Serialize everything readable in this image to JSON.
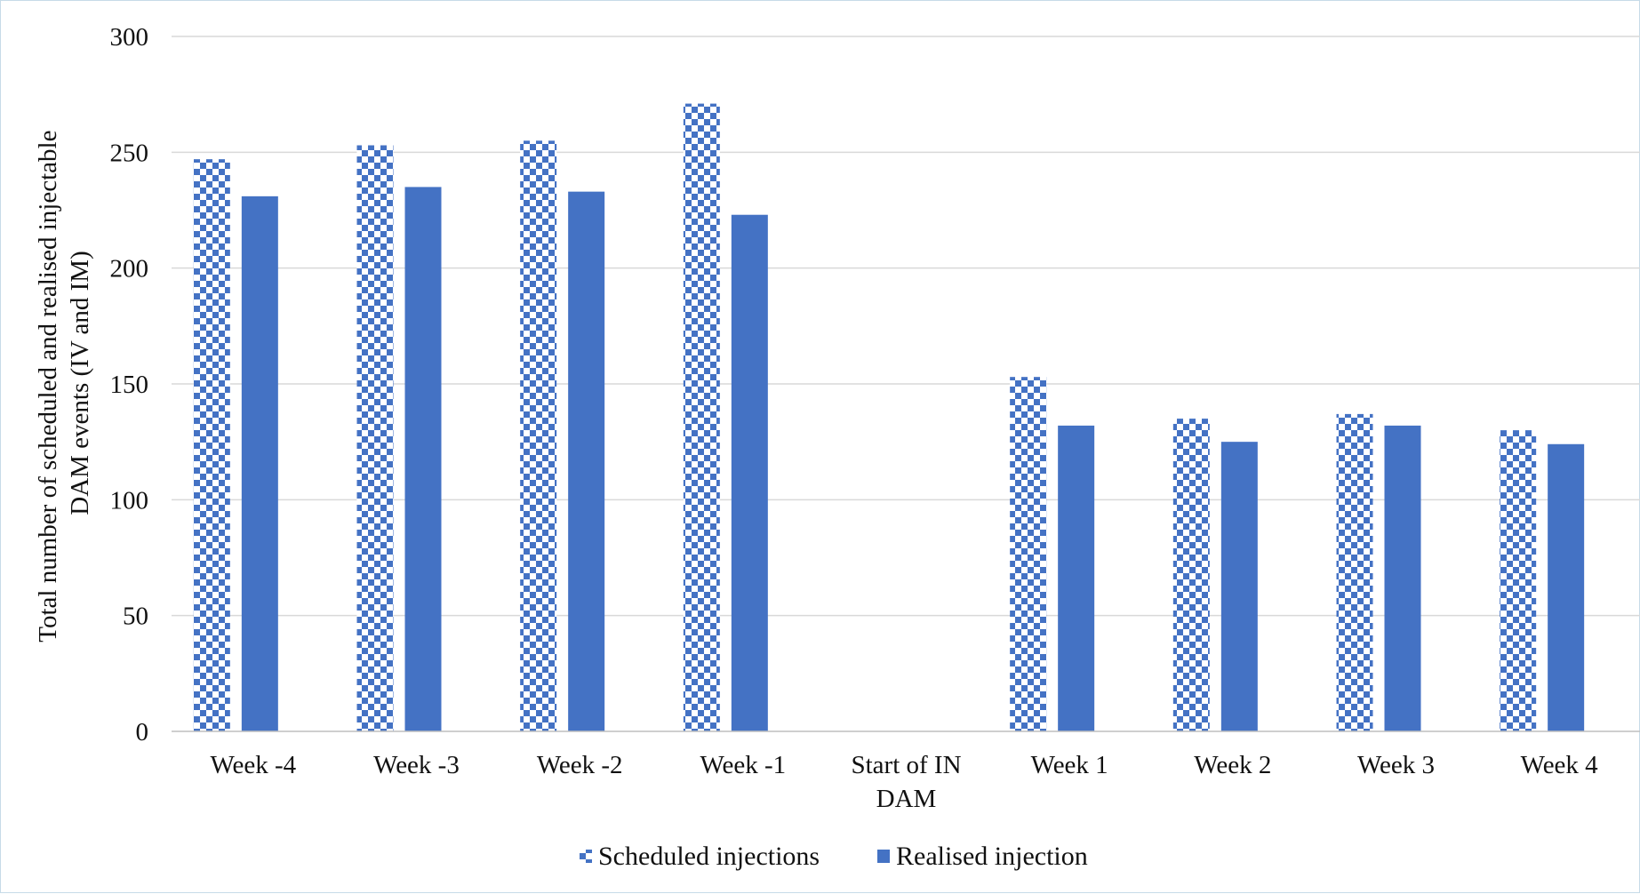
{
  "chart_data": {
    "type": "bar",
    "title": "",
    "xlabel": "",
    "ylabel_lines": [
      "Total number of   scheduled and realised injectable",
      "DAM events (IV and IM)"
    ],
    "ylim": [
      0,
      300
    ],
    "yticks": [
      "0",
      "50",
      "100",
      "150",
      "200",
      "250",
      "300"
    ],
    "ytick_values": [
      0,
      50,
      100,
      150,
      200,
      250,
      300
    ],
    "grid": true,
    "legend_position": "bottom-center",
    "categories": [
      [
        "Week -4"
      ],
      [
        "Week -3"
      ],
      [
        "Week -2"
      ],
      [
        "Week -1"
      ],
      [
        "Start of IN",
        "DAM"
      ],
      [
        "Week 1"
      ],
      [
        "Week 2"
      ],
      [
        "Week 3"
      ],
      [
        "Week 4"
      ]
    ],
    "series": [
      {
        "name": "Scheduled injections",
        "pattern": "checkerboard",
        "color": "#4472C4",
        "values": [
          247,
          253,
          255,
          271,
          null,
          153,
          135,
          137,
          130
        ]
      },
      {
        "name": "Realised injection",
        "pattern": "solid",
        "color": "#4472C4",
        "values": [
          231,
          235,
          233,
          223,
          null,
          132,
          125,
          132,
          124
        ]
      }
    ]
  }
}
